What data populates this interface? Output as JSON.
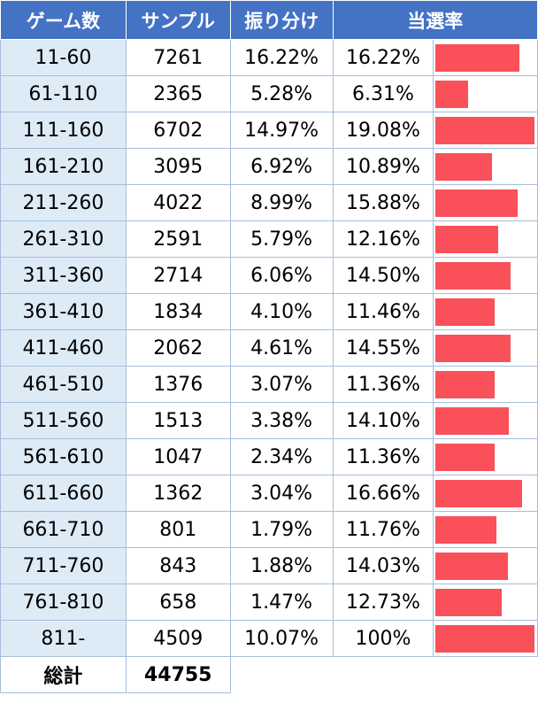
{
  "headers": {
    "games": "ゲーム数",
    "samples": "サンプル",
    "distribution": "振り分け",
    "win_rate": "当選率"
  },
  "chart_data": {
    "type": "table",
    "columns": [
      "ゲーム数",
      "サンプル",
      "振り分け",
      "当選率"
    ],
    "rows": [
      {
        "range": "11-60",
        "samples": "7261",
        "share": "16.22%",
        "rate": "16.22%",
        "rate_value": 16.22
      },
      {
        "range": "61-110",
        "samples": "2365",
        "share": "5.28%",
        "rate": "6.31%",
        "rate_value": 6.31
      },
      {
        "range": "111-160",
        "samples": "6702",
        "share": "14.97%",
        "rate": "19.08%",
        "rate_value": 19.08
      },
      {
        "range": "161-210",
        "samples": "3095",
        "share": "6.92%",
        "rate": "10.89%",
        "rate_value": 10.89
      },
      {
        "range": "211-260",
        "samples": "4022",
        "share": "8.99%",
        "rate": "15.88%",
        "rate_value": 15.88
      },
      {
        "range": "261-310",
        "samples": "2591",
        "share": "5.79%",
        "rate": "12.16%",
        "rate_value": 12.16
      },
      {
        "range": "311-360",
        "samples": "2714",
        "share": "6.06%",
        "rate": "14.50%",
        "rate_value": 14.5
      },
      {
        "range": "361-410",
        "samples": "1834",
        "share": "4.10%",
        "rate": "11.46%",
        "rate_value": 11.46
      },
      {
        "range": "411-460",
        "samples": "2062",
        "share": "4.61%",
        "rate": "14.55%",
        "rate_value": 14.55
      },
      {
        "range": "461-510",
        "samples": "1376",
        "share": "3.07%",
        "rate": "11.36%",
        "rate_value": 11.36
      },
      {
        "range": "511-560",
        "samples": "1513",
        "share": "3.38%",
        "rate": "14.10%",
        "rate_value": 14.1
      },
      {
        "range": "561-610",
        "samples": "1047",
        "share": "2.34%",
        "rate": "11.36%",
        "rate_value": 11.36
      },
      {
        "range": "611-660",
        "samples": "1362",
        "share": "3.04%",
        "rate": "16.66%",
        "rate_value": 16.66
      },
      {
        "range": "661-710",
        "samples": "801",
        "share": "1.79%",
        "rate": "11.76%",
        "rate_value": 11.76
      },
      {
        "range": "711-760",
        "samples": "843",
        "share": "1.88%",
        "rate": "14.03%",
        "rate_value": 14.03
      },
      {
        "range": "761-810",
        "samples": "658",
        "share": "1.47%",
        "rate": "12.73%",
        "rate_value": 12.73
      },
      {
        "range": "811-",
        "samples": "4509",
        "share": "10.07%",
        "rate": "100%",
        "rate_value": 100
      }
    ],
    "bar_scale_max": 19.08
  },
  "total": {
    "label": "総計",
    "value": "44755"
  },
  "colors": {
    "header_bg": "#4472c4",
    "range_bg": "#ddebf7",
    "bar": "#fa505a"
  }
}
